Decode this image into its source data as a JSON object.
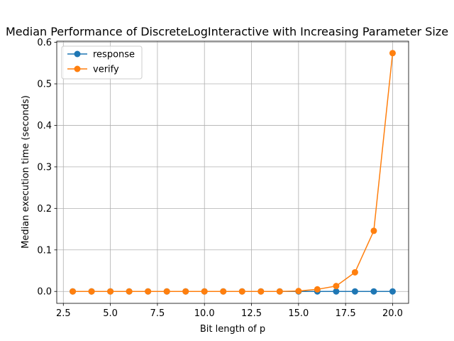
{
  "chart_data": {
    "type": "line",
    "title": "Median Performance of DiscreteLogInteractive with Increasing Parameter Size",
    "xlabel": "Bit length of p",
    "ylabel": "Median execution time (seconds)",
    "xlim": [
      2.15,
      20.85
    ],
    "ylim": [
      -0.0287,
      0.6027
    ],
    "xticks": [
      2.5,
      5.0,
      7.5,
      10.0,
      12.5,
      15.0,
      17.5,
      20.0
    ],
    "xtick_labels": [
      "2.5",
      "5.0",
      "7.5",
      "10.0",
      "12.5",
      "15.0",
      "17.5",
      "20.0"
    ],
    "yticks": [
      0.0,
      0.1,
      0.2,
      0.3,
      0.4,
      0.5,
      0.6
    ],
    "ytick_labels": [
      "0.0",
      "0.1",
      "0.2",
      "0.3",
      "0.4",
      "0.5",
      "0.6"
    ],
    "grid": true,
    "legend_position": "top-left",
    "x": [
      3,
      4,
      5,
      6,
      7,
      8,
      9,
      10,
      11,
      12,
      13,
      14,
      15,
      16,
      17,
      18,
      19,
      20
    ],
    "series": [
      {
        "name": "response",
        "color": "#1f77b4",
        "values": [
          0.0,
          0.0,
          0.0,
          0.0,
          0.0,
          0.0,
          0.0,
          0.0,
          0.0,
          0.0,
          0.0,
          0.0,
          0.0,
          0.0,
          0.0,
          0.0,
          0.0,
          0.0
        ]
      },
      {
        "name": "verify",
        "color": "#ff7f0e",
        "values": [
          0.0,
          0.0,
          0.0,
          0.0,
          0.0,
          0.0,
          0.0,
          0.0,
          0.0,
          0.0,
          0.0,
          0.0,
          0.001,
          0.005,
          0.013,
          0.046,
          0.146,
          0.574
        ]
      }
    ]
  }
}
